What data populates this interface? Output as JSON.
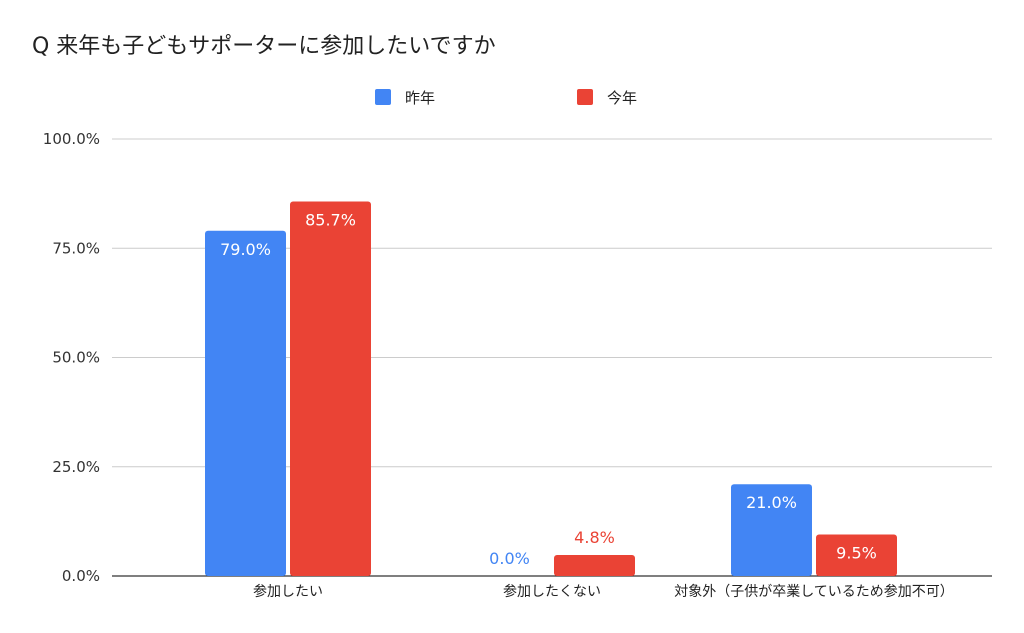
{
  "chart_data": {
    "type": "bar",
    "title": "Q 来年も子どもサポーターに参加したいですか",
    "categories": [
      "参加したい",
      "参加したくない",
      "対象外（子供が卒業しているため参加不可）"
    ],
    "series": [
      {
        "name": "昨年",
        "color": "#4285f4",
        "values": [
          79.0,
          0.0,
          21.0
        ],
        "labels": [
          "79.0%",
          "0.0%",
          "21.0%"
        ]
      },
      {
        "name": "今年",
        "color": "#ea4335",
        "values": [
          85.7,
          4.8,
          9.5
        ],
        "labels": [
          "85.7%",
          "4.8%",
          "9.5%"
        ]
      }
    ],
    "yticks": [
      0,
      25,
      50,
      75,
      100
    ],
    "ytick_labels": [
      "0.0%",
      "25.0%",
      "50.0%",
      "75.0%",
      "100.0%"
    ],
    "ylim": [
      0,
      100
    ],
    "grid": true,
    "legend_position": "top-center",
    "xlabel": "",
    "ylabel": ""
  }
}
